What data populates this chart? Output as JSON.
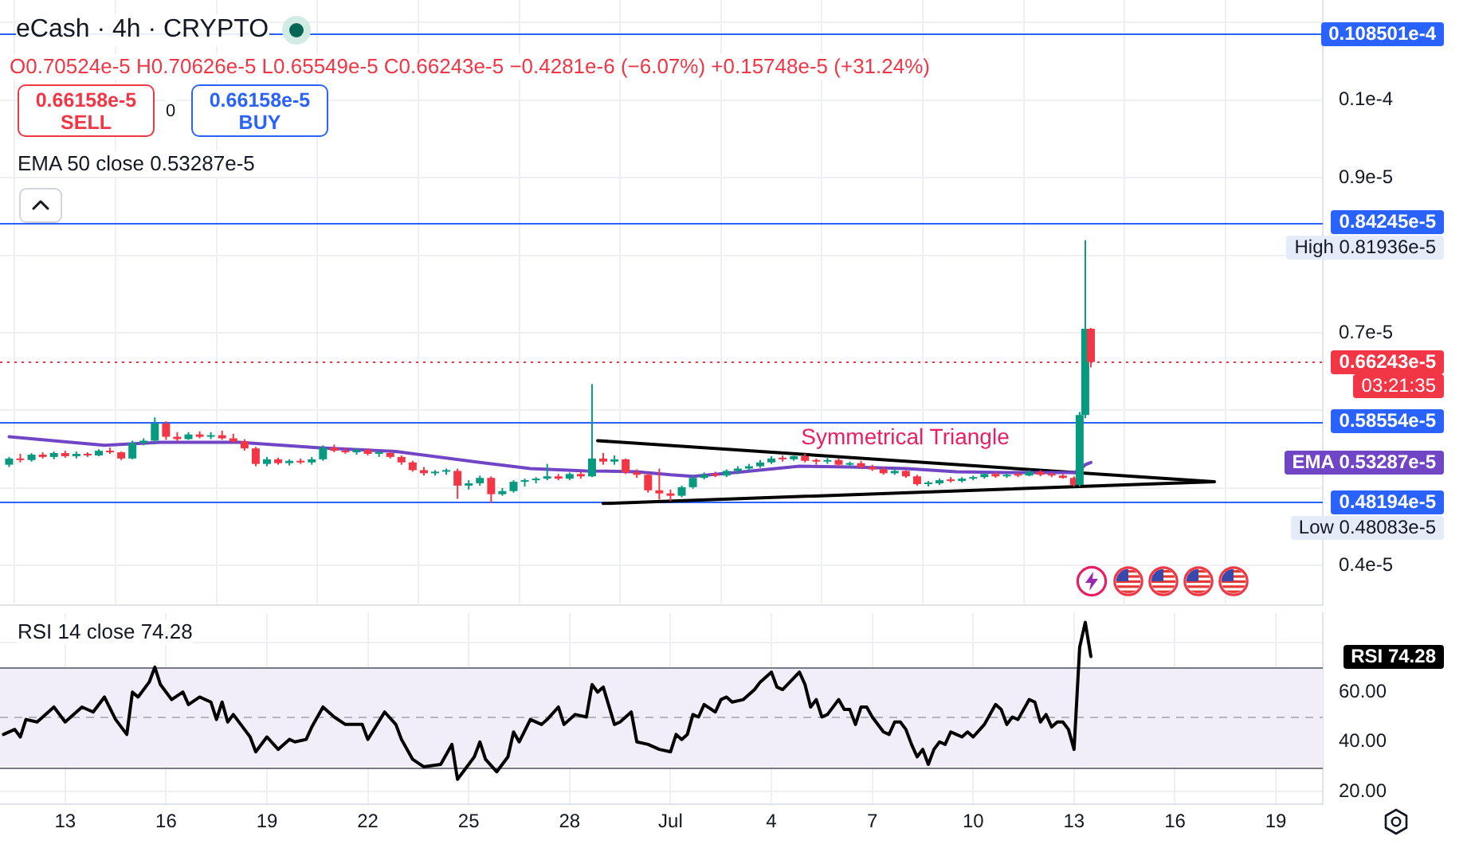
{
  "chart_data": [
    {
      "type": "candlestick",
      "title": "eCash · 4h · CRYPTO",
      "subtitle": "O0.70524e-5 H0.70626e-5 L0.65549e-5 C0.66243e-5 −0.4281e-6 (−6.07%) +0.15748e-5 (+31.24%)",
      "x": [
        "--06-11T08:00",
        "--06-11T16:00",
        "--06-12T00:00",
        "--06-12T08:00",
        "--06-12T16:00",
        "--06-13T00:00",
        "--06-13T08:00",
        "--06-13T16:00",
        "--06-14T00:00",
        "--06-14T08:00",
        "--06-14T16:00",
        "--06-15T00:00",
        "--06-15T08:00",
        "--06-15T16:00",
        "--06-16T00:00",
        "--06-16T08:00",
        "--06-16T16:00",
        "--06-17T00:00",
        "--06-17T08:00",
        "--06-17T16:00",
        "--06-18T00:00",
        "--06-18T08:00",
        "--06-18T16:00",
        "--06-19T00:00",
        "--06-19T08:00",
        "--06-19T16:00",
        "--06-20T00:00",
        "--06-20T08:00",
        "--06-20T16:00",
        "--06-21T00:00",
        "--06-21T08:00",
        "--06-21T16:00",
        "--06-22T00:00",
        "--06-22T08:00",
        "--06-22T16:00",
        "--06-23T00:00",
        "--06-23T08:00",
        "--06-23T16:00",
        "--06-24T00:00",
        "--06-24T08:00",
        "--06-24T16:00",
        "--06-25T00:00",
        "--06-25T08:00",
        "--06-25T16:00",
        "--06-26T00:00",
        "--06-26T08:00",
        "--06-26T16:00",
        "--06-27T00:00",
        "--06-27T08:00",
        "--06-27T16:00",
        "--06-28T00:00",
        "--06-28T08:00",
        "--06-28T16:00",
        "--06-29T00:00",
        "--06-29T08:00",
        "--06-29T16:00",
        "--06-30T00:00",
        "--06-30T08:00",
        "--06-30T16:00",
        "--07-01T00:00",
        "--07-01T08:00",
        "--07-01T16:00",
        "--07-02T00:00",
        "--07-02T08:00",
        "--07-02T16:00",
        "--07-03T00:00",
        "--07-03T08:00",
        "--07-03T16:00",
        "--07-04T00:00",
        "--07-04T08:00",
        "--07-04T16:00",
        "--07-05T00:00",
        "--07-05T08:00",
        "--07-05T16:00",
        "--07-06T00:00",
        "--07-06T08:00",
        "--07-06T16:00",
        "--07-07T00:00",
        "--07-07T08:00",
        "--07-07T16:00",
        "--07-08T00:00",
        "--07-08T08:00",
        "--07-08T16:00",
        "--07-09T00:00",
        "--07-09T08:00",
        "--07-09T16:00",
        "--07-10T00:00",
        "--07-10T08:00",
        "--07-10T16:00",
        "--07-11T00:00",
        "--07-11T08:00",
        "--07-11T16:00",
        "--07-12T00:00",
        "--07-12T08:00",
        "--07-12T16:00",
        "--07-13T00:00",
        "--07-13T04:00",
        "--07-13T08:00",
        "--07-13T12:00"
      ],
      "ohlc": [
        [
          5.3e-06,
          5.4e-06,
          5.27e-06,
          5.38e-06
        ],
        [
          5.38e-06,
          5.44e-06,
          5.33e-06,
          5.36e-06
        ],
        [
          5.36e-06,
          5.45e-06,
          5.34e-06,
          5.43e-06
        ],
        [
          5.43e-06,
          5.46e-06,
          5.38e-06,
          5.4e-06
        ],
        [
          5.4e-06,
          5.47e-06,
          5.37e-06,
          5.45e-06
        ],
        [
          5.45e-06,
          5.48e-06,
          5.39e-06,
          5.41e-06
        ],
        [
          5.41e-06,
          5.47e-06,
          5.38e-06,
          5.44e-06
        ],
        [
          5.44e-06,
          5.46e-06,
          5.4e-06,
          5.42e-06
        ],
        [
          5.42e-06,
          5.5e-06,
          5.41e-06,
          5.48e-06
        ],
        [
          5.48e-06,
          5.52e-06,
          5.44e-06,
          5.46e-06
        ],
        [
          5.46e-06,
          5.47e-06,
          5.36e-06,
          5.38e-06
        ],
        [
          5.38e-06,
          5.61e-06,
          5.37e-06,
          5.58e-06
        ],
        [
          5.58e-06,
          5.64e-06,
          5.55e-06,
          5.61e-06
        ],
        [
          5.61e-06,
          5.91e-06,
          5.58e-06,
          5.83e-06
        ],
        [
          5.83e-06,
          5.86e-06,
          5.62e-06,
          5.66e-06
        ],
        [
          5.66e-06,
          5.72e-06,
          5.6e-06,
          5.63e-06
        ],
        [
          5.63e-06,
          5.72e-06,
          5.62e-06,
          5.69e-06
        ],
        [
          5.69e-06,
          5.73e-06,
          5.64e-06,
          5.66e-06
        ],
        [
          5.66e-06,
          5.72e-06,
          5.63e-06,
          5.68e-06
        ],
        [
          5.68e-06,
          5.74e-06,
          5.62e-06,
          5.64e-06
        ],
        [
          5.64e-06,
          5.7e-06,
          5.58e-06,
          5.6e-06
        ],
        [
          5.6e-06,
          5.63e-06,
          5.48e-06,
          5.51e-06
        ],
        [
          5.51e-06,
          5.53e-06,
          5.28e-06,
          5.31e-06
        ],
        [
          5.31e-06,
          5.4e-06,
          5.28e-06,
          5.37e-06
        ],
        [
          5.37e-06,
          5.39e-06,
          5.3e-06,
          5.32e-06
        ],
        [
          5.32e-06,
          5.37e-06,
          5.29e-06,
          5.35e-06
        ],
        [
          5.35e-06,
          5.38e-06,
          5.31e-06,
          5.33e-06
        ],
        [
          5.33e-06,
          5.4e-06,
          5.3e-06,
          5.37e-06
        ],
        [
          5.37e-06,
          5.55e-06,
          5.35e-06,
          5.52e-06
        ],
        [
          5.52e-06,
          5.56e-06,
          5.46e-06,
          5.48e-06
        ],
        [
          5.48e-06,
          5.52e-06,
          5.44e-06,
          5.46e-06
        ],
        [
          5.46e-06,
          5.51e-06,
          5.43e-06,
          5.49e-06
        ],
        [
          5.49e-06,
          5.51e-06,
          5.42e-06,
          5.44e-06
        ],
        [
          5.44e-06,
          5.48e-06,
          5.4e-06,
          5.45e-06
        ],
        [
          5.45e-06,
          5.47e-06,
          5.38e-06,
          5.4e-06
        ],
        [
          5.4e-06,
          5.42e-06,
          5.3e-06,
          5.33e-06
        ],
        [
          5.33e-06,
          5.35e-06,
          5.21e-06,
          5.23e-06
        ],
        [
          5.23e-06,
          5.27e-06,
          5.16e-06,
          5.19e-06
        ],
        [
          5.19e-06,
          5.23e-06,
          5.16e-06,
          5.21e-06
        ],
        [
          5.21e-06,
          5.25e-06,
          5.17e-06,
          5.22e-06
        ],
        [
          5.22e-06,
          5.25e-06,
          4.86e-06,
          5.03e-06
        ],
        [
          5.03e-06,
          5.1e-06,
          4.98e-06,
          5.06e-06
        ],
        [
          5.06e-06,
          5.16e-06,
          5.03e-06,
          5.13e-06
        ],
        [
          5.13e-06,
          5.15e-06,
          4.8083e-06,
          4.92e-06
        ],
        [
          4.92e-06,
          5e-06,
          4.9e-06,
          4.96e-06
        ],
        [
          4.96e-06,
          5.1e-06,
          4.94e-06,
          5.08e-06
        ],
        [
          5.08e-06,
          5.12e-06,
          5.02e-06,
          5.1e-06
        ],
        [
          5.1e-06,
          5.14e-06,
          5.06e-06,
          5.12e-06
        ],
        [
          5.12e-06,
          5.31e-06,
          5.1e-06,
          5.15e-06
        ],
        [
          5.15e-06,
          5.18e-06,
          5.1e-06,
          5.12e-06
        ],
        [
          5.12e-06,
          5.2e-06,
          5.1e-06,
          5.18e-06
        ],
        [
          5.18e-06,
          5.21e-06,
          5.12e-06,
          5.15e-06
        ],
        [
          5.15e-06,
          6.34e-06,
          5.14e-06,
          5.38e-06
        ],
        [
          5.38e-06,
          5.45e-06,
          5.3e-06,
          5.34e-06
        ],
        [
          5.34e-06,
          5.42e-06,
          5.3e-06,
          5.37e-06
        ],
        [
          5.37e-06,
          5.38e-06,
          5.18e-06,
          5.2e-06
        ],
        [
          5.2e-06,
          5.24e-06,
          5.13e-06,
          5.17e-06
        ],
        [
          5.17e-06,
          5.19e-06,
          4.94e-06,
          4.97e-06
        ],
        [
          4.97e-06,
          5.25e-06,
          4.85e-06,
          4.93e-06
        ],
        [
          4.93e-06,
          4.98e-06,
          4.83e-06,
          4.9e-06
        ],
        [
          4.9e-06,
          5.03e-06,
          4.88e-06,
          5.01e-06
        ],
        [
          5.01e-06,
          5.16e-06,
          4.99e-06,
          5.13e-06
        ],
        [
          5.13e-06,
          5.2e-06,
          5.11e-06,
          5.17e-06
        ],
        [
          5.17e-06,
          5.21e-06,
          5.14e-06,
          5.16e-06
        ],
        [
          5.16e-06,
          5.24e-06,
          5.14e-06,
          5.22e-06
        ],
        [
          5.22e-06,
          5.28e-06,
          5.18e-06,
          5.25e-06
        ],
        [
          5.25e-06,
          5.31e-06,
          5.22e-06,
          5.28e-06
        ],
        [
          5.28e-06,
          5.36e-06,
          5.26e-06,
          5.33e-06
        ],
        [
          5.33e-06,
          5.41e-06,
          5.31e-06,
          5.38e-06
        ],
        [
          5.38e-06,
          5.42e-06,
          5.34e-06,
          5.37e-06
        ],
        [
          5.37e-06,
          5.43e-06,
          5.35e-06,
          5.41e-06
        ],
        [
          5.41e-06,
          5.44e-06,
          5.33e-06,
          5.35e-06
        ],
        [
          5.35e-06,
          5.38e-06,
          5.3e-06,
          5.34e-06
        ],
        [
          5.34e-06,
          5.4e-06,
          5.31e-06,
          5.36e-06
        ],
        [
          5.36e-06,
          5.38e-06,
          5.28e-06,
          5.3e-06
        ],
        [
          5.3e-06,
          5.34e-06,
          5.27e-06,
          5.32e-06
        ],
        [
          5.32e-06,
          5.35e-06,
          5.25e-06,
          5.27e-06
        ],
        [
          5.27e-06,
          5.3e-06,
          5.22e-06,
          5.24e-06
        ],
        [
          5.24e-06,
          5.27e-06,
          5.17e-06,
          5.19e-06
        ],
        [
          5.19e-06,
          5.25e-06,
          5.17e-06,
          5.22e-06
        ],
        [
          5.22e-06,
          5.23e-06,
          5.13e-06,
          5.15e-06
        ],
        [
          5.15e-06,
          5.17e-06,
          5.03e-06,
          5.05e-06
        ],
        [
          5.05e-06,
          5.09e-06,
          5.02e-06,
          5.06e-06
        ],
        [
          5.06e-06,
          5.12e-06,
          5.04e-06,
          5.1e-06
        ],
        [
          5.1e-06,
          5.14e-06,
          5.07e-06,
          5.09e-06
        ],
        [
          5.09e-06,
          5.14e-06,
          5.07e-06,
          5.12e-06
        ],
        [
          5.12e-06,
          5.16e-06,
          5.1e-06,
          5.14e-06
        ],
        [
          5.14e-06,
          5.2e-06,
          5.12e-06,
          5.18e-06
        ],
        [
          5.18e-06,
          5.21e-06,
          5.13e-06,
          5.15e-06
        ],
        [
          5.15e-06,
          5.19e-06,
          5.13e-06,
          5.17e-06
        ],
        [
          5.17e-06,
          5.2e-06,
          5.14e-06,
          5.16e-06
        ],
        [
          5.16e-06,
          5.23e-06,
          5.15e-06,
          5.21e-06
        ],
        [
          5.21e-06,
          5.23e-06,
          5.15e-06,
          5.17e-06
        ],
        [
          5.17e-06,
          5.2e-06,
          5.14e-06,
          5.16e-06
        ],
        [
          5.16e-06,
          5.18e-06,
          5.12e-06,
          5.13e-06
        ],
        [
          5.13e-06,
          5.15e-06,
          5.02e-06,
          5.04e-06
        ],
        [
          5.04e-06,
          5.98e-06,
          5.02e-06,
          5.94e-06
        ],
        [
          5.94e-06,
          8.1936e-06,
          5.9e-06,
          7.0524e-06
        ],
        [
          7.0524e-06,
          7.0626e-06,
          6.5549e-06,
          6.6243e-06
        ]
      ],
      "series": [
        {
          "type": "line",
          "color": "#7045c6",
          "x": [
            "--06-11T08:00",
            "--06-14T04:00",
            "--06-15T20:00",
            "--06-18T04:00",
            "--06-20T12:00",
            "--06-22T20:00",
            "--06-25T08:00",
            "--06-26T20:00",
            "--06-28T12:00",
            "--06-30T00:00",
            "--07-01T00:00",
            "--07-01T16:00",
            "--07-03T04:00",
            "--07-04T20:00",
            "--07-06T08:00",
            "--07-08T00:00",
            "--07-09T12:00",
            "--07-11T00:00",
            "--07-13T00:00",
            "--07-13T04:00",
            "--07-13T08:00",
            "--07-13T12:00"
          ],
          "values": [
            5.66e-06,
            5.55e-06,
            5.59e-06,
            5.59e-06,
            5.52e-06,
            5.47e-06,
            5.33e-06,
            5.25e-06,
            5.22e-06,
            5.21e-06,
            5.17e-06,
            5.15e-06,
            5.21e-06,
            5.28e-06,
            5.27e-06,
            5.25e-06,
            5.21e-06,
            5.2e-06,
            5.2e-06,
            5.23e-06,
            5.3e-06,
            5.3287e-06
          ]
        },
        {
          "type": "line",
          "color": "#000000",
          "x": [
            "--06-28T20:00",
            "--07-17T04:00"
          ],
          "values": [
            5.61e-06,
            5.08e-06
          ]
        },
        {
          "type": "line",
          "color": "#000000",
          "x": [
            "--06-29T00:00",
            "--07-17T04:00"
          ],
          "values": [
            4.8e-06,
            5.08e-06
          ]
        }
      ],
      "xlim": [
        "--06-11T01:30",
        "--07-20T09:30"
      ],
      "xticks": [
        {
          "value": "--06-13",
          "label": null
        },
        {
          "value": "--06-16",
          "label": null
        },
        {
          "value": "--06-19",
          "label": null
        },
        {
          "value": "--06-22",
          "label": null
        },
        {
          "value": "--06-25",
          "label": null
        },
        {
          "value": "--06-28",
          "label": null
        },
        {
          "value": "--07-01",
          "label": null
        },
        {
          "value": "--07-04",
          "label": null
        },
        {
          "value": "--07-07",
          "label": null
        },
        {
          "value": "--07-10",
          "label": null
        },
        {
          "value": "--07-13",
          "label": null
        },
        {
          "value": "--07-16",
          "label": null
        },
        {
          "value": "--07-19",
          "label": null
        }
      ],
      "ylim": [
        3.49e-06,
        1.129e-05
      ],
      "yticks": [
        {
          "value": 4e-06,
          "label": "0.4e-5"
        },
        {
          "value": 5e-06,
          "label": null
        },
        {
          "value": 6e-06,
          "label": null
        },
        {
          "value": 7e-06,
          "label": "0.7e-5"
        },
        {
          "value": 8e-06,
          "label": null
        },
        {
          "value": 9e-06,
          "label": "0.9e-5"
        },
        {
          "value": 1e-05,
          "label": "0.1e-4"
        },
        {
          "value": 1.1e-05,
          "label": null
        }
      ],
      "grid": true,
      "tick_labels": "y",
      "ref_lines": [
        {
          "axis": "y",
          "value": 1.08501e-05,
          "label": "0.108501e-4",
          "color": "#2962ff"
        },
        {
          "axis": "y",
          "value": 8.4245e-06,
          "label": "0.84245e-5",
          "color": "#2962ff"
        },
        {
          "axis": "y",
          "value": 6.6243e-06,
          "label": "0.66243e-5",
          "color": "#f23645",
          "line_style": "dotted"
        },
        {
          "axis": "y",
          "value": 5.8554e-06,
          "label": "0.58554e-5",
          "color": "#2962ff"
        },
        {
          "axis": "y",
          "value": 4.8194e-06,
          "label": "0.48194e-5",
          "color": "#2962ff"
        }
      ],
      "annotations": [
        "0.66158e-5 SELL",
        "0",
        "0.66158e-5 BUY",
        "EMA 50 close 0.53287e-5",
        "Symmetrical Triangle",
        "High 0.81936e-5",
        "03:21:35",
        "EMA 0.53287e-5",
        "Low 0.48083e-5"
      ]
    },
    {
      "type": "line",
      "title": "RSI 14 close 74.28",
      "color": "#000000",
      "x": [
        "--06-11T04:00",
        "--06-11T12:00",
        "--06-11T16:00",
        "--06-11T20:00",
        "--06-12T04:00",
        "--06-12T16:00",
        "--06-13T00:00",
        "--06-13T12:00",
        "--06-13T20:00",
        "--06-14T04:00",
        "--06-14T12:00",
        "--06-14T20:00",
        "--06-15T00:00",
        "--06-15T04:00",
        "--06-15T12:00",
        "--06-15T16:00",
        "--06-15T20:00",
        "--06-16T04:00",
        "--06-16T12:00",
        "--06-16T16:00",
        "--06-17T00:00",
        "--06-17T08:00",
        "--06-17T12:00",
        "--06-17T16:00",
        "--06-17T20:00",
        "--06-18T00:00",
        "--06-18T08:00",
        "--06-18T12:00",
        "--06-18T16:00",
        "--06-19T00:00",
        "--06-19T08:00",
        "--06-19T16:00",
        "--06-19T20:00",
        "--06-20T04:00",
        "--06-20T08:00",
        "--06-20T16:00",
        "--06-21T00:00",
        "--06-21T08:00",
        "--06-21T20:00",
        "--06-22T00:00",
        "--06-22T12:00",
        "--06-22T20:00",
        "--06-23T00:00",
        "--06-23T08:00",
        "--06-23T16:00",
        "--06-24T04:00",
        "--06-24T12:00",
        "--06-24T16:00",
        "--06-25T00:00",
        "--06-25T04:00",
        "--06-25T08:00",
        "--06-25T12:00",
        "--06-25T20:00",
        "--06-26T04:00",
        "--06-26T08:00",
        "--06-26T12:00",
        "--06-26T20:00",
        "--06-27T04:00",
        "--06-27T08:00",
        "--06-27T16:00",
        "--06-27T20:00",
        "--06-28T04:00",
        "--06-28T12:00",
        "--06-28T16:00",
        "--06-28T20:00",
        "--06-29T00:00",
        "--06-29T08:00",
        "--06-29T12:00",
        "--06-29T20:00",
        "--06-30T00:00",
        "--06-30T08:00",
        "--06-30T16:00",
        "--07-01T00:00",
        "--07-01T04:00",
        "--07-01T08:00",
        "--07-01T12:00",
        "--07-01T16:00",
        "--07-01T20:00",
        "--07-02T00:00",
        "--07-02T08:00",
        "--07-02T12:00",
        "--07-02T16:00",
        "--07-02T20:00",
        "--07-03T04:00",
        "--07-03T12:00",
        "--07-03T16:00",
        "--07-04T00:00",
        "--07-04T04:00",
        "--07-04T08:00",
        "--07-04T20:00",
        "--07-05T00:00",
        "--07-05T04:00",
        "--07-05T08:00",
        "--07-05T12:00",
        "--07-05T16:00",
        "--07-06T00:00",
        "--07-06T04:00",
        "--07-06T08:00",
        "--07-06T12:00",
        "--07-06T16:00",
        "--07-06T20:00",
        "--07-07T00:00",
        "--07-07T08:00",
        "--07-07T12:00",
        "--07-07T16:00",
        "--07-07T20:00",
        "--07-08T00:00",
        "--07-08T04:00",
        "--07-08T08:00",
        "--07-08T12:00",
        "--07-08T16:00",
        "--07-08T20:00",
        "--07-09T00:00",
        "--07-09T04:00",
        "--07-09T08:00",
        "--07-09T12:00",
        "--07-09T16:00",
        "--07-09T20:00",
        "--07-10T00:00",
        "--07-10T08:00",
        "--07-10T12:00",
        "--07-10T16:00",
        "--07-10T20:00",
        "--07-11T00:00",
        "--07-11T04:00",
        "--07-11T08:00",
        "--07-11T16:00",
        "--07-11T20:00",
        "--07-12T00:00",
        "--07-12T04:00",
        "--07-12T08:00",
        "--07-12T12:00",
        "--07-12T16:00",
        "--07-12T20:00",
        "--07-13T00:00",
        "--07-13T04:00",
        "--07-13T08:00",
        "--07-13T12:00"
      ],
      "values": [
        43,
        45,
        42,
        49,
        48,
        54,
        48,
        54,
        52,
        58,
        49,
        43,
        60,
        58,
        64,
        70,
        63,
        57,
        60,
        55,
        58,
        56,
        49,
        56,
        48,
        51,
        45,
        42,
        36,
        42,
        37,
        41,
        40,
        41,
        46,
        54,
        50,
        47,
        47,
        41,
        52,
        47,
        41,
        33,
        30,
        31,
        39,
        25,
        31,
        34,
        40,
        33,
        28,
        34,
        44,
        40,
        49,
        47,
        49,
        54,
        47,
        51,
        50,
        63,
        60,
        62,
        47,
        48,
        52,
        40,
        39,
        37,
        36,
        43,
        41,
        43,
        51,
        50,
        55,
        52,
        57,
        58,
        56,
        57,
        61,
        64,
        68,
        62,
        61,
        68,
        63,
        54,
        57,
        50,
        51,
        57,
        53,
        53,
        47,
        54,
        54,
        50,
        44,
        43,
        48,
        48,
        45,
        39,
        34,
        37,
        31,
        37,
        40,
        39,
        44,
        43,
        42,
        44,
        42,
        47,
        51,
        55,
        53,
        47,
        50,
        49,
        57,
        56,
        48,
        51,
        46,
        48,
        48,
        45,
        37,
        78,
        88,
        74.28
      ],
      "xlim": [
        "--06-11T01:30",
        "--07-20T09:30"
      ],
      "xticks": [
        {
          "value": "--06-13",
          "label": "13"
        },
        {
          "value": "--06-16",
          "label": "16"
        },
        {
          "value": "--06-19",
          "label": "19"
        },
        {
          "value": "--06-22",
          "label": "22"
        },
        {
          "value": "--06-25",
          "label": "25"
        },
        {
          "value": "--06-28",
          "label": "28"
        },
        {
          "value": "--07-01",
          "label": "Jul"
        },
        {
          "value": "--07-04",
          "label": "4"
        },
        {
          "value": "--07-07",
          "label": "7"
        },
        {
          "value": "--07-10",
          "label": "10"
        },
        {
          "value": "--07-13",
          "label": "13"
        },
        {
          "value": "--07-16",
          "label": "16"
        },
        {
          "value": "--07-19",
          "label": "19"
        }
      ],
      "ylim": [
        15,
        91.7
      ],
      "yticks": [
        {
          "value": 20,
          "label": "20.00"
        },
        {
          "value": 40,
          "label": "40.00"
        },
        {
          "value": 60,
          "label": "60.00"
        },
        {
          "value": 80,
          "label": null
        }
      ],
      "grid": true,
      "bands": [
        {
          "axis": "y",
          "from": 30,
          "to": 70,
          "color": "#f1eefa"
        }
      ],
      "ref_lines": [
        {
          "axis": "y",
          "value": 70,
          "color": "#787b86"
        },
        {
          "axis": "y",
          "value": 50,
          "color": "#b2b5be",
          "line_style": "dashed"
        },
        {
          "axis": "y",
          "value": 30,
          "color": "#787b86"
        }
      ],
      "annotations": [
        "RSI 74.28"
      ]
    }
  ]
}
